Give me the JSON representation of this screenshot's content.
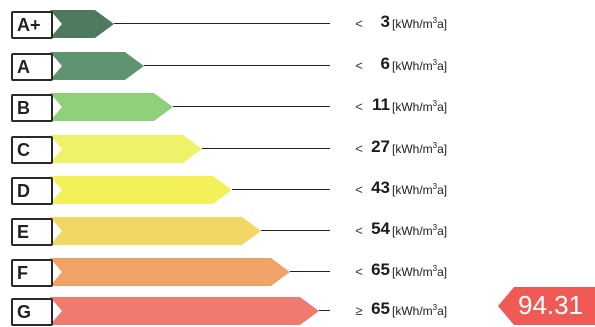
{
  "unit": {
    "prefix": "[kWh/m",
    "power": "3",
    "suffix": "a]"
  },
  "classes": [
    {
      "letter": "A+",
      "comparator": "<",
      "value": "3",
      "color": "#4f7a5f"
    },
    {
      "letter": "A",
      "comparator": "<",
      "value": "6",
      "color": "#5e9470"
    },
    {
      "letter": "B",
      "comparator": "<",
      "value": "11",
      "color": "#8fd17a"
    },
    {
      "letter": "C",
      "comparator": "<",
      "value": "27",
      "color": "#eef26a"
    },
    {
      "letter": "D",
      "comparator": "<",
      "value": "43",
      "color": "#f4f05a"
    },
    {
      "letter": "E",
      "comparator": "<",
      "value": "54",
      "color": "#f3d764"
    },
    {
      "letter": "F",
      "comparator": "<",
      "value": "65",
      "color": "#f0a268"
    },
    {
      "letter": "G",
      "comparator": "≥",
      "value": "65",
      "color": "#ee7a70"
    }
  ],
  "result": {
    "value": "94.31",
    "color": "#f05a55"
  }
}
